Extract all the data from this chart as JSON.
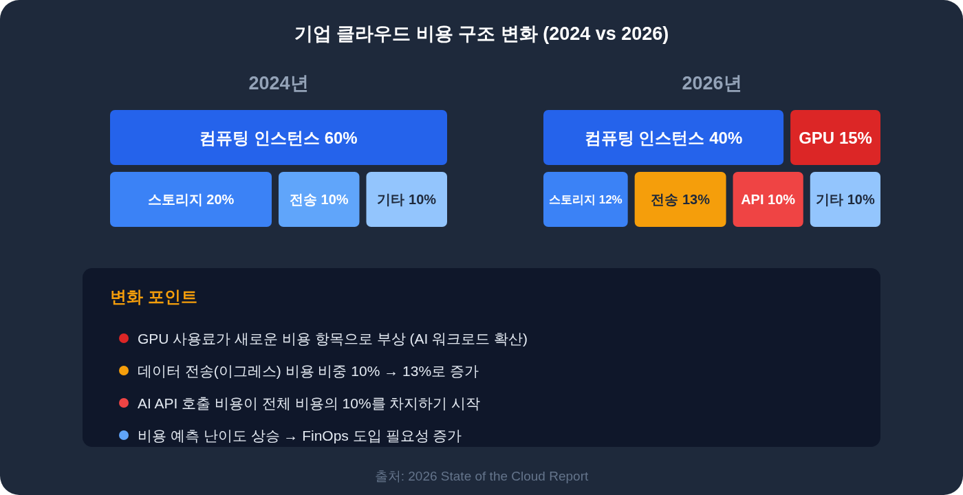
{
  "chart_data": [
    {
      "type": "other",
      "title": "기업 클라우드 비용 구조 변화 (2024 vs 2026)"
    },
    {
      "type": "other",
      "title": "2024년",
      "categories": [
        "컴퓨팅 인스턴스",
        "스토리지",
        "전송",
        "기타"
      ],
      "values": [
        60,
        20,
        10,
        10
      ],
      "value_labels": [
        "60%",
        "20%",
        "10%",
        "10%"
      ],
      "colors": [
        "#2563eb",
        "#3b82f6",
        "#60a5fa",
        "#93c5fd"
      ]
    },
    {
      "type": "other",
      "title": "2026년",
      "categories": [
        "컴퓨팅 인스턴스",
        "GPU",
        "스토리지",
        "전송",
        "API",
        "기타"
      ],
      "values": [
        40,
        15,
        12,
        13,
        10,
        10
      ],
      "value_labels": [
        "40%",
        "15%",
        "12%",
        "13%",
        "10%",
        "10%"
      ],
      "colors": [
        "#2563eb",
        "#dc2626",
        "#3b82f6",
        "#f59e0b",
        "#ef4444",
        "#93c5fd"
      ]
    },
    {
      "type": "other",
      "title": "변화 포인트",
      "annotations": [
        "GPU 사용료가 새로운 비용 항목으로 부상 (AI 워크로드 확산)",
        "데이터 전송(이그레스) 비용 비중 10% → 13%로 증가",
        "AI API 호출 비용이 전체 비용의 10%를 차지하기 시작",
        "비용 예측 난이도 상승 → FinOps 도입 필요성 증가"
      ],
      "colors": [
        "#dc2626",
        "#f59e0b",
        "#ef4444",
        "#60a5fa"
      ]
    },
    {
      "type": "other",
      "annotations": [
        "출처: 2026 State of the Cloud Report"
      ]
    }
  ]
}
